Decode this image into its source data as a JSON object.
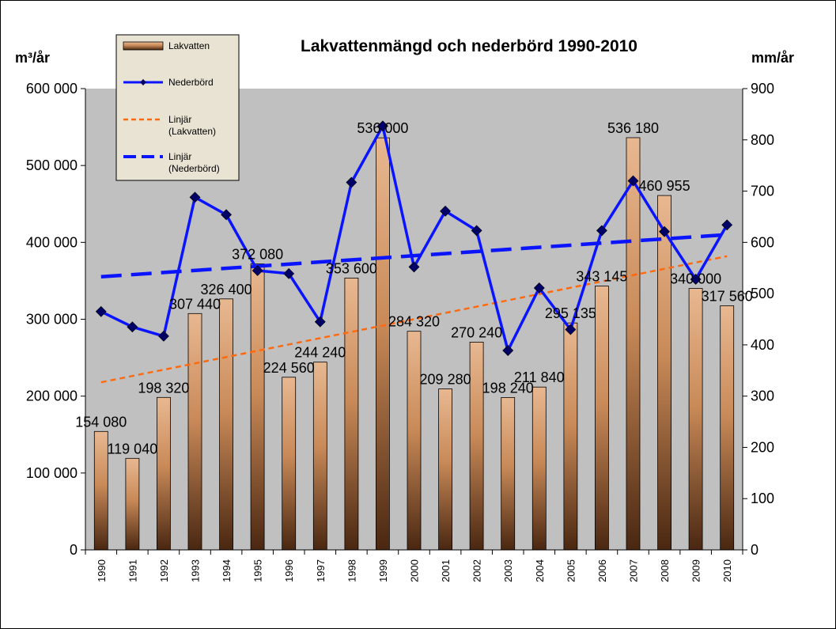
{
  "chart_data": {
    "type": "bar",
    "title": "Lakvattenmängd och nederbörd 1990-2010",
    "y_left_unit": "m³/år",
    "y_right_unit": "mm/år",
    "ylim_left": [
      0,
      600000
    ],
    "ylim_right": [
      0,
      900
    ],
    "y_left_ticks": [
      "0",
      "100 000",
      "200 000",
      "300 000",
      "400 000",
      "500 000",
      "600 000"
    ],
    "y_right_ticks": [
      "0",
      "100",
      "200",
      "300",
      "400",
      "500",
      "600",
      "700",
      "800",
      "900"
    ],
    "categories": [
      "1990",
      "1991",
      "1992",
      "1993",
      "1994",
      "1995",
      "1996",
      "1997",
      "1998",
      "1999",
      "2000",
      "2001",
      "2002",
      "2003",
      "2004",
      "2005",
      "2006",
      "2007",
      "2008",
      "2009",
      "2010"
    ],
    "series": [
      {
        "name": "Lakvatten",
        "type": "bar",
        "axis": "left",
        "values": [
          154080,
          119040,
          198320,
          307440,
          326400,
          372080,
          224560,
          244240,
          353600,
          536000,
          284320,
          209280,
          270240,
          198240,
          211840,
          295135,
          343145,
          536180,
          460955,
          340000,
          317560
        ],
        "labels": [
          "154 080",
          "119 040",
          "198 320",
          "307 440",
          "326 400",
          "372 080",
          "224 560",
          "244 240",
          "353 600",
          "536 000",
          "284 320",
          "209 280",
          "270 240",
          "198 240",
          "211 840",
          "295 135",
          "343 145",
          "536 180",
          "460 955",
          "340 000",
          "317 560"
        ]
      },
      {
        "name": "Nederbörd",
        "type": "line",
        "axis": "right",
        "values": [
          465,
          435,
          417,
          688,
          654,
          545,
          539,
          445,
          717,
          827,
          552,
          661,
          623,
          389,
          511,
          430,
          623,
          720,
          621,
          528,
          634
        ]
      }
    ],
    "trendlines": [
      {
        "name": "Linjär (Lakvatten)",
        "axis": "left",
        "start": 218000,
        "end": 382000
      },
      {
        "name": "Linjär (Nederbörd)",
        "axis": "right",
        "start": 533,
        "end": 615
      }
    ],
    "legend": {
      "placement": "top-left",
      "entries": [
        {
          "label": "Lakvatten",
          "style": "bar"
        },
        {
          "label": "Nederbörd",
          "style": "line-marker"
        },
        {
          "label": "Linjär\n(Lakvatten)",
          "style": "trend-orange"
        },
        {
          "label": "Linjär\n(Nederbörd)",
          "style": "trend-blue"
        }
      ]
    },
    "grid": false,
    "colors": {
      "plot_background": "#c0c0c0",
      "bar_top": "#e8b891",
      "bar_mid": "#c98a58",
      "bar_bottom": "#4a2711",
      "precip_line": "#0a14ff",
      "precip_marker": "#000066",
      "trend_lakvatten": "#ff6a10",
      "trend_nederbord": "#0a14ff",
      "legend_background": "#e8e3d3"
    }
  }
}
